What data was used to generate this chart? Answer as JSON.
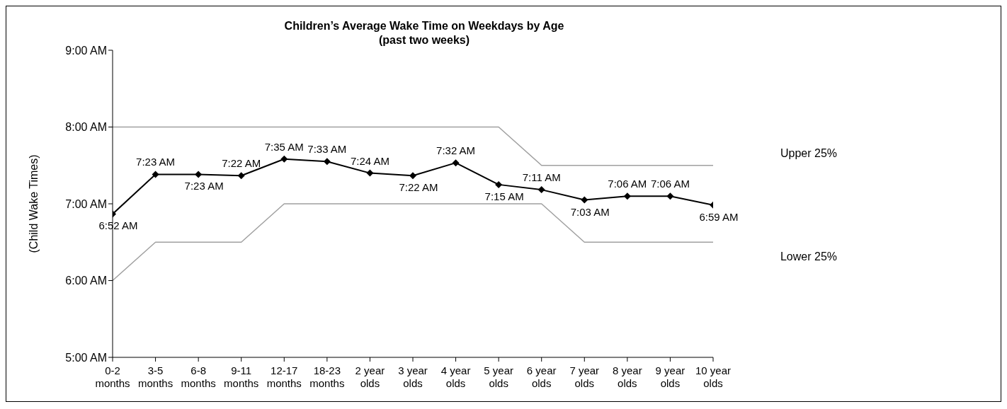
{
  "chart_data": {
    "type": "line",
    "title": "Children’s Average Wake Time on Weekdays by Age",
    "subtitle": "(past two weeks)",
    "ylabel": "(Child Wake Times)",
    "categories": [
      "0-2 months",
      "3-5 months",
      "6-8 months",
      "9-11 months",
      "12-17 months",
      "18-23 months",
      "2 year olds",
      "3 year olds",
      "4 year olds",
      "5 year olds",
      "6 year olds",
      "7 year olds",
      "8 year olds",
      "9 year olds",
      "10 year olds"
    ],
    "series": [
      {
        "color": "#000000",
        "marker": "diamond",
        "values": [
          6.8667,
          7.3833,
          7.3833,
          7.3667,
          7.5833,
          7.55,
          7.4,
          7.3667,
          7.5333,
          7.25,
          7.1833,
          7.05,
          7.1,
          7.1,
          6.9833
        ],
        "value_labels": [
          "6:52 AM",
          "7:23 AM",
          "7:23 AM",
          "7:22 AM",
          "7:35 AM",
          "7:33 AM",
          "7:24 AM",
          "7:22 AM",
          "7:32 AM",
          "7:15 AM",
          "7:11 AM",
          "7:03 AM",
          "7:06 AM",
          "7:06 AM",
          "6:59 AM"
        ]
      },
      {
        "name": "Upper 25%",
        "color": "#a0a0a0",
        "values": [
          8,
          8,
          8,
          8,
          8,
          8,
          8,
          8,
          8,
          8,
          7.5,
          7.5,
          7.5,
          7.5,
          7.5
        ]
      },
      {
        "name": "Lower 25%",
        "color": "#a0a0a0",
        "values": [
          6,
          6.5,
          6.5,
          6.5,
          7,
          7,
          7,
          7,
          7,
          7,
          7,
          6.5,
          6.5,
          6.5,
          6.5
        ]
      }
    ],
    "ylim": [
      5,
      9
    ],
    "yticks": [
      {
        "value": 5,
        "label": "5:00 AM"
      },
      {
        "value": 6,
        "label": "6:00 AM"
      },
      {
        "value": 7,
        "label": "7:00 AM"
      },
      {
        "value": 8,
        "label": "8:00 AM"
      },
      {
        "value": 9,
        "label": "9:00 AM"
      }
    ],
    "marker": "none"
  }
}
